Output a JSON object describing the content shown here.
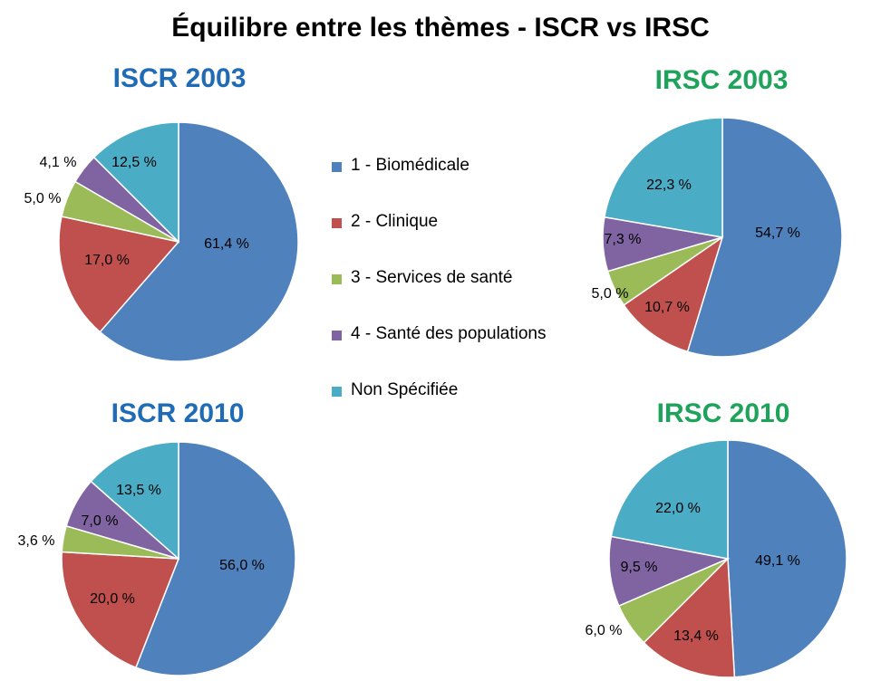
{
  "title": "Équilibre entre les thèmes - ISCR vs IRSC",
  "colors": [
    "#4F81BD",
    "#C0504D",
    "#9BBB59",
    "#8064A2",
    "#4BACC6"
  ],
  "title_colors": {
    "iscr": "#1F6BB5",
    "irsc": "#1DA35A"
  },
  "legend": [
    "1 - Biomédicale",
    "2 - Clinique",
    "3 - Services de santé",
    "4 - Santé des populations",
    "Non Spécifiée"
  ],
  "chart_data": [
    {
      "type": "pie",
      "title": "ISCR 2003",
      "categories": [
        "1 - Biomédicale",
        "2 - Clinique",
        "3 - Services de santé",
        "4 - Santé des populations",
        "Non Spécifiée"
      ],
      "values": [
        61.4,
        17.0,
        5.0,
        4.1,
        12.5
      ],
      "labels": [
        "61,4 %",
        "17,0 %",
        "5,0 %",
        "4,1 %",
        "12,5 %"
      ]
    },
    {
      "type": "pie",
      "title": "IRSC 2003",
      "categories": [
        "1 - Biomédicale",
        "2 - Clinique",
        "3 - Services de santé",
        "4 - Santé des populations",
        "Non Spécifiée"
      ],
      "values": [
        54.7,
        10.7,
        5.0,
        7.3,
        22.3
      ],
      "labels": [
        "54,7 %",
        "10,7 %",
        "5,0 %",
        "7,3 %",
        "22,3 %"
      ]
    },
    {
      "type": "pie",
      "title": "ISCR 2010",
      "categories": [
        "1 - Biomédicale",
        "2 - Clinique",
        "3 - Services de santé",
        "4 - Santé des populations",
        "Non Spécifiée"
      ],
      "values": [
        56.0,
        20.0,
        3.6,
        7.0,
        13.5
      ],
      "labels": [
        "56,0 %",
        "20,0 %",
        "3,6 %",
        "7,0 %",
        "13,5 %"
      ]
    },
    {
      "type": "pie",
      "title": "IRSC 2010",
      "categories": [
        "1 - Biomédicale",
        "2 - Clinique",
        "3 - Services de santé",
        "4 - Santé des populations",
        "Non Spécifiée"
      ],
      "values": [
        49.1,
        13.4,
        6.0,
        9.5,
        22.0
      ],
      "labels": [
        "49,1 %",
        "13,4 %",
        "6,0 %",
        "9,5 %",
        "22,0 %"
      ]
    }
  ]
}
